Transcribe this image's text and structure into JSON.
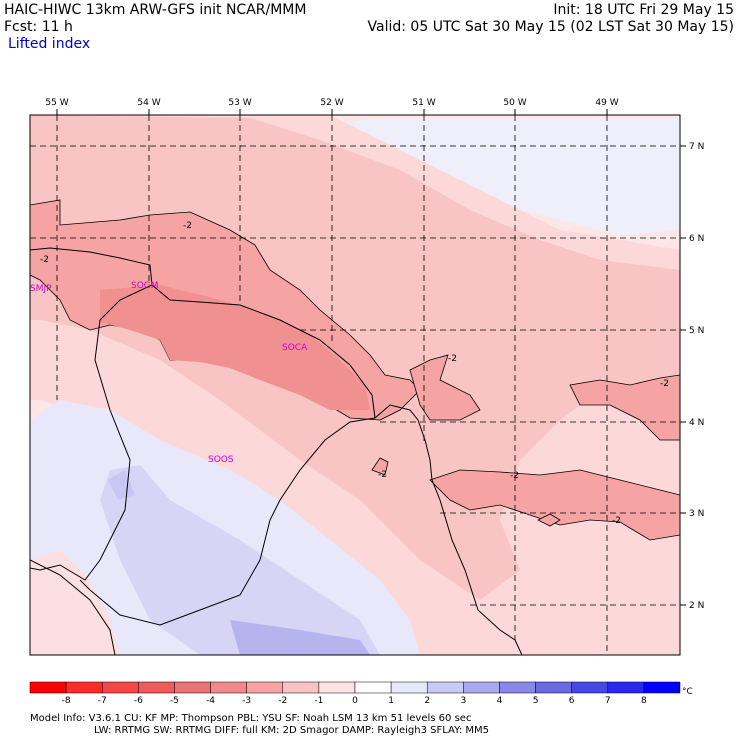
{
  "header": {
    "line1_left": "HAIC-HIWC 13km ARW-GFS init   NCAR/MMM",
    "line1_right": "Init: 18 UTC Fri 29 May 15",
    "line2_left": "Fcst:     11 h",
    "line2_right": "Valid: 05 UTC Sat 30 May 15 (02 LST Sat 30 May 15)",
    "field_name": "Lifted index"
  },
  "map": {
    "lon_labels": [
      "55 W",
      "54 W",
      "53 W",
      "52 W",
      "51 W",
      "50 W",
      "49 W"
    ],
    "lat_labels": [
      "7 N",
      "6 N",
      "5 N",
      "4 N",
      "3 N",
      "2 N"
    ],
    "stations": [
      "SMJP",
      "SOGM",
      "SOCA",
      "SOOS"
    ],
    "contour_labels": [
      "-2",
      "-2",
      "-2",
      "-2",
      "-2",
      "-2",
      "-2"
    ]
  },
  "colorbar": {
    "ticks": [
      "-8",
      "-7",
      "-6",
      "-5",
      "-4",
      "-3",
      "-2",
      "-1",
      "0",
      "1",
      "2",
      "3",
      "4",
      "5",
      "6",
      "7",
      "8"
    ],
    "unit": "°C",
    "colors": [
      "#ff0000",
      "#ff2b2b",
      "#f54545",
      "#f05a5a",
      "#ef7272",
      "#f08a8a",
      "#f5a3a3",
      "#f9c3c3",
      "#fbe3e3",
      "#ffffff",
      "#e8e8fb",
      "#c9c9f5",
      "#a9a9f0",
      "#8888ea",
      "#6a6ae6",
      "#4747e8",
      "#2828ee",
      "#0000ff"
    ]
  },
  "footer": {
    "line1": "Model Info: V3.6.1    CU: KF        MP: Thompson     PBL: YSU       SF: Noah LSM     13 km   51 levels   60 sec",
    "line2": "LW: RRTMG    SW: RRTMG   DIFF: full    KM: 2D Smagor DAMP: Rayleigh3   SFLAY: MM5"
  }
}
